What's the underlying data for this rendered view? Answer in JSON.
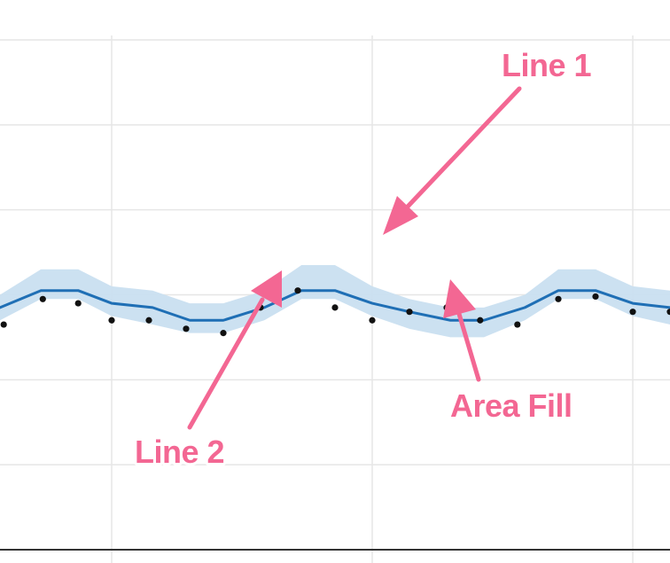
{
  "chart_data": {
    "type": "line",
    "title": "",
    "xlabel": "",
    "ylabel": "",
    "grid": true,
    "xlim": [
      0,
      18
    ],
    "ylim": [
      0,
      6
    ],
    "x_gridlines": [
      3.0,
      10.0,
      17.0
    ],
    "y_gridlines": [
      1,
      2,
      3,
      4,
      5,
      6
    ],
    "band_x": [
      0,
      1.1,
      2.1,
      3.0,
      4.1,
      5.1,
      6.0,
      7.1,
      8.1,
      9.0,
      10.0,
      11.0,
      12.1,
      13.0,
      14.1,
      15.0,
      16.0,
      17.0,
      18.0
    ],
    "band_upper": [
      3.0,
      3.3,
      3.3,
      3.1,
      3.05,
      2.9,
      2.9,
      3.05,
      3.35,
      3.35,
      3.1,
      2.95,
      2.85,
      2.85,
      3.0,
      3.3,
      3.3,
      3.1,
      3.05
    ],
    "band_lower": [
      2.7,
      2.95,
      2.95,
      2.75,
      2.65,
      2.55,
      2.55,
      2.7,
      2.95,
      2.95,
      2.75,
      2.6,
      2.5,
      2.5,
      2.7,
      2.95,
      2.95,
      2.75,
      2.65
    ],
    "series": [
      {
        "values": [
          2.85,
          3.05,
          3.05,
          2.9,
          2.85,
          2.7,
          2.7,
          2.85,
          3.05,
          3.05,
          2.9,
          2.8,
          2.7,
          2.7,
          2.85,
          3.05,
          3.05,
          2.9,
          2.85
        ],
        "x": [
          0,
          1.1,
          2.1,
          3.0,
          4.1,
          5.1,
          6.0,
          7.1,
          8.1,
          9.0,
          10.0,
          11.0,
          12.1,
          13.0,
          14.1,
          15.0,
          16.0,
          17.0,
          18.0
        ],
        "style": "line",
        "color": "#1f6fb5"
      },
      {
        "x": [
          0.1,
          1.15,
          2.1,
          3.0,
          4.0,
          5.0,
          6.0,
          7.0,
          8.0,
          9.0,
          10.0,
          11.0,
          12.0,
          12.9,
          13.9,
          15.0,
          16.0,
          17.0,
          18.0
        ],
        "values": [
          2.65,
          2.95,
          2.9,
          2.7,
          2.7,
          2.6,
          2.55,
          2.85,
          3.05,
          2.85,
          2.7,
          2.8,
          2.85,
          2.7,
          2.65,
          2.95,
          2.98,
          2.8,
          2.8
        ],
        "style": "points",
        "color": "#111111"
      }
    ],
    "annotations": [
      {
        "label": "Line 1",
        "target": "Line 1 arrow",
        "color": "#f36793"
      },
      {
        "label": "Line 2",
        "target": "Line 2 arrow",
        "color": "#f36793"
      },
      {
        "label": "Area Fill",
        "target": "Area Fill arrow",
        "color": "#f36793"
      }
    ]
  }
}
